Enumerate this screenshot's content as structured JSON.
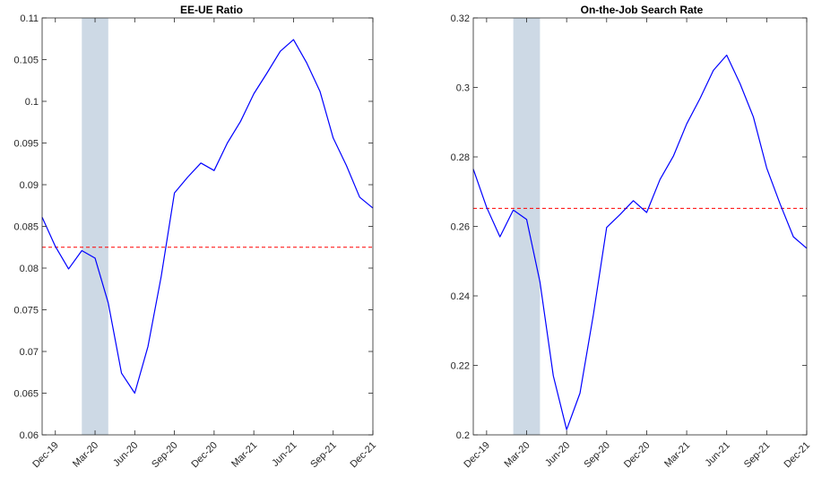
{
  "chart_data": [
    {
      "type": "line",
      "title": "EE-UE Ratio",
      "xlabel": "",
      "ylabel": "",
      "ylim": [
        0.06,
        0.11
      ],
      "yticks": [
        "0.06",
        "0.065",
        "0.07",
        "0.075",
        "0.08",
        "0.085",
        "0.09",
        "0.095",
        "0.1",
        "0.105",
        "0.11"
      ],
      "xtick_labels": [
        "Dec-19",
        "Mar-20",
        "Jun-20",
        "Sep-20",
        "Dec-20",
        "Mar-21",
        "Jun-21",
        "Sep-21",
        "Dec-21"
      ],
      "x": [
        "Nov-19",
        "Dec-19",
        "Jan-20",
        "Feb-20",
        "Mar-20",
        "Apr-20",
        "May-20",
        "Jun-20",
        "Jul-20",
        "Aug-20",
        "Sep-20",
        "Oct-20",
        "Nov-20",
        "Dec-20",
        "Jan-21",
        "Feb-21",
        "Mar-21",
        "Apr-21",
        "May-21",
        "Jun-21",
        "Jul-21",
        "Aug-21",
        "Sep-21",
        "Oct-21",
        "Nov-21",
        "Dec-21"
      ],
      "series": [
        {
          "values": [
            0.0861,
            0.0826,
            0.0799,
            0.0821,
            0.0812,
            0.0758,
            0.0674,
            0.065,
            0.0706,
            0.079,
            0.089,
            0.0909,
            0.0926,
            0.0917,
            0.095,
            0.0976,
            0.1009,
            0.1034,
            0.106,
            0.1074,
            0.1046,
            0.1012,
            0.0956,
            0.0923,
            0.0885,
            0.0872
          ]
        }
      ],
      "reference_line": {
        "value": 0.0825,
        "style": "dashed",
        "color": "#ff0000"
      },
      "shaded_period": {
        "start": "Feb-20",
        "end": "Apr-20",
        "color": "#cdd9e5"
      },
      "line_color": "#0000ff",
      "grid": false
    },
    {
      "type": "line",
      "title": "On-the-Job Search Rate",
      "xlabel": "",
      "ylabel": "",
      "ylim": [
        0.2,
        0.32
      ],
      "yticks": [
        "0.2",
        "0.22",
        "0.24",
        "0.26",
        "0.28",
        "0.3",
        "0.32"
      ],
      "xtick_labels": [
        "Dec-19",
        "Mar-20",
        "Jun-20",
        "Sep-20",
        "Dec-20",
        "Mar-21",
        "Jun-21",
        "Sep-21",
        "Dec-21"
      ],
      "x": [
        "Nov-19",
        "Dec-19",
        "Jan-20",
        "Feb-20",
        "Mar-20",
        "Apr-20",
        "May-20",
        "Jun-20",
        "Jul-20",
        "Aug-20",
        "Sep-20",
        "Oct-20",
        "Nov-20",
        "Dec-20",
        "Jan-21",
        "Feb-21",
        "Mar-21",
        "Apr-21",
        "May-21",
        "Jun-21",
        "Jul-21",
        "Aug-21",
        "Sep-21",
        "Oct-21",
        "Nov-21",
        "Dec-21"
      ],
      "series": [
        {
          "values": [
            0.2765,
            0.2655,
            0.257,
            0.2647,
            0.262,
            0.244,
            0.217,
            0.2015,
            0.212,
            0.2345,
            0.2597,
            0.2634,
            0.2674,
            0.264,
            0.2735,
            0.2802,
            0.2895,
            0.2968,
            0.3049,
            0.3093,
            0.3011,
            0.2915,
            0.2768,
            0.2665,
            0.257,
            0.2537
          ]
        }
      ],
      "reference_line": {
        "value": 0.2652,
        "style": "dashed",
        "color": "#ff0000"
      },
      "shaded_period": {
        "start": "Feb-20",
        "end": "Apr-20",
        "color": "#cdd9e5"
      },
      "line_color": "#0000ff",
      "grid": false
    }
  ]
}
